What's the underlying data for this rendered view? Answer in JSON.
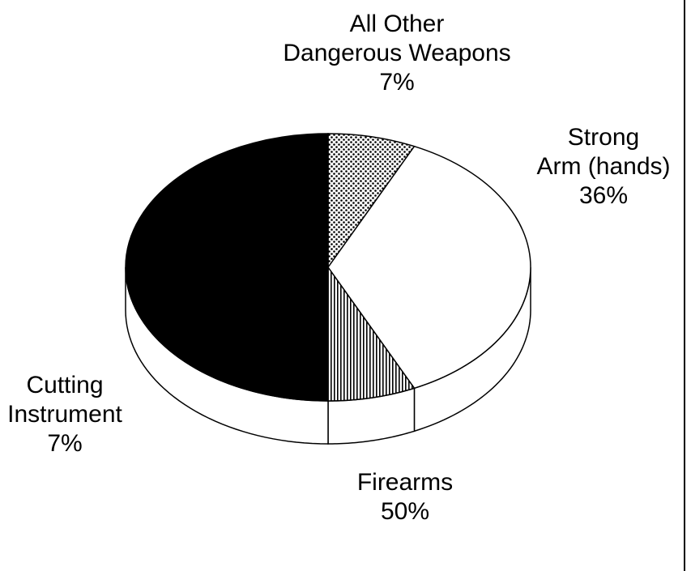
{
  "chart_data": {
    "type": "pie3d",
    "categories": [
      "All Other\nDangerous Weapons",
      "Strong\nArm (hands)",
      "Cutting\nInstrument",
      "Firearms"
    ],
    "values": [
      7,
      36,
      7,
      50
    ],
    "value_labels": [
      "7%",
      "36%",
      "7%",
      "50%"
    ],
    "colors": [
      "dots",
      "#ffffff",
      "vlines",
      "#000000"
    ]
  }
}
